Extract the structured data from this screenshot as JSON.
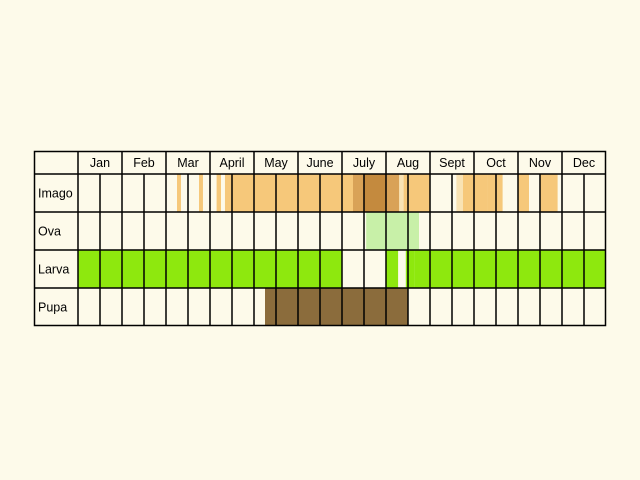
{
  "chart_data": {
    "type": "table",
    "months": [
      "Jan",
      "Feb",
      "Mar",
      "April",
      "May",
      "June",
      "July",
      "Aug",
      "Sept",
      "Oct",
      "Nov",
      "Dec"
    ],
    "half_months_per_month": 2,
    "rows": [
      {
        "label": "Imago",
        "bars": [
          {
            "start": 4.5,
            "end": 4.68,
            "color": "#f6c87a"
          },
          {
            "start": 5.5,
            "end": 5.68,
            "color": "#f6c87a"
          },
          {
            "start": 6.3,
            "end": 6.5,
            "color": "#f6c87a"
          },
          {
            "start": 6.68,
            "end": 14.6,
            "color": "#f6c87a"
          },
          {
            "start": 12.5,
            "end": 14.6,
            "color": "#d9a257"
          },
          {
            "start": 13.0,
            "end": 14.0,
            "color": "#c48a3e"
          },
          {
            "start": 14.6,
            "end": 14.8,
            "color": "#f9e3b4"
          },
          {
            "start": 14.8,
            "end": 16.0,
            "color": "#f6c87a"
          },
          {
            "start": 17.2,
            "end": 17.5,
            "color": "#f9e3b4"
          },
          {
            "start": 17.5,
            "end": 18.6,
            "color": "#f6c87a"
          },
          {
            "start": 18.6,
            "end": 19.0,
            "color": "#f6c87a"
          },
          {
            "start": 18.6,
            "end": 19.3,
            "color": "#f6c87a"
          },
          {
            "start": 20.0,
            "end": 20.5,
            "color": "#f6c87a"
          },
          {
            "start": 21.0,
            "end": 21.8,
            "color": "#f6c87a"
          }
        ]
      },
      {
        "label": "Ova",
        "bars": [
          {
            "start": 13.1,
            "end": 15.5,
            "color": "#c8f0a8"
          }
        ]
      },
      {
        "label": "Larva",
        "bars": [
          {
            "start": 0.0,
            "end": 12.0,
            "color": "#8ee80e"
          },
          {
            "start": 14.0,
            "end": 14.55,
            "color": "#8ee80e"
          },
          {
            "start": 14.9,
            "end": 15.3,
            "color": "#8ee80e"
          },
          {
            "start": 15.3,
            "end": 24.0,
            "color": "#8ee80e"
          }
        ]
      },
      {
        "label": "Pupa",
        "bars": [
          {
            "start": 8.5,
            "end": 15.0,
            "color": "#8b6c3c"
          }
        ]
      }
    ],
    "colors": {
      "background": "#fdfaea",
      "cell": "#fdfaea",
      "grid": "#000000"
    }
  }
}
